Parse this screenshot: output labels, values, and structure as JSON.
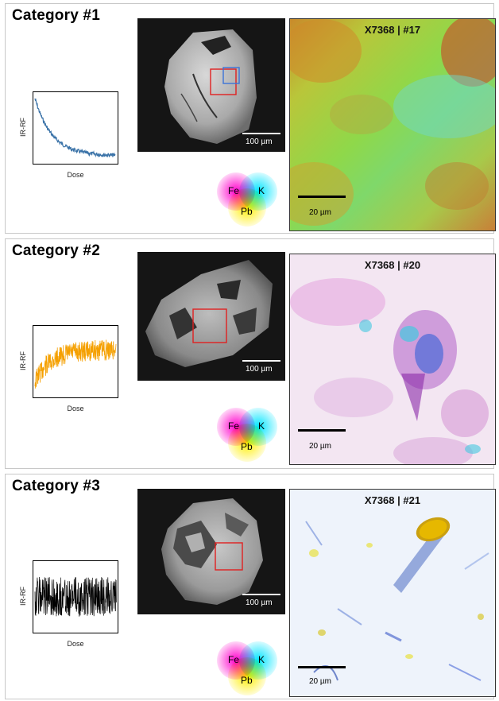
{
  "axis": {
    "ylabel": "IR-RF",
    "xlabel": "Dose"
  },
  "sem_scale_label": "100 µm",
  "map_scale_label": "20 µm",
  "legend": {
    "labels": [
      "Fe",
      "K",
      "Pb"
    ],
    "colors": [
      "#ff00cc",
      "#00e5ff",
      "#ffee00"
    ]
  },
  "categories": [
    {
      "title": "Category #1",
      "map_title": "X7368 | #17",
      "trace_color": "#3b73a8"
    },
    {
      "title": "Category #2",
      "map_title": "X7368 | #20",
      "trace_color": "#f5a000"
    },
    {
      "title": "Category #3",
      "map_title": "X7368 | #21",
      "trace_color": "#000000"
    }
  ]
}
